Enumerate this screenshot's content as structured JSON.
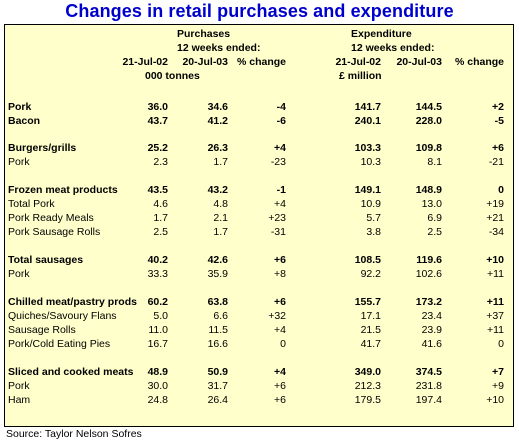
{
  "title": "Changes in retail purchases and expenditure",
  "source": "Source: Taylor Nelson Sofres",
  "header": {
    "purchases": "Purchases",
    "expenditure": "Expenditure",
    "weeks_ended": "12 weeks ended:",
    "date1": "21-Jul-02",
    "date2": "20-Jul-03",
    "pct_change": "% change",
    "unit_purchases": "000 tonnes",
    "unit_expenditure": "£ million"
  },
  "rows": [
    {
      "label": "Pork",
      "bold": true,
      "v": [
        "36.0",
        "34.6",
        "-4",
        "141.7",
        "144.5",
        "+2"
      ]
    },
    {
      "label": "Bacon",
      "bold": true,
      "v": [
        "43.7",
        "41.2",
        "-6",
        "240.1",
        "228.0",
        "-5"
      ]
    },
    {
      "label": "Burgers/grills",
      "bold": true,
      "v": [
        "25.2",
        "26.3",
        "+4",
        "103.3",
        "109.8",
        "+6"
      ]
    },
    {
      "label": "Pork",
      "bold": false,
      "v": [
        "2.3",
        "1.7",
        "-23",
        "10.3",
        "8.1",
        "-21"
      ]
    },
    {
      "label": "Frozen meat products",
      "bold": true,
      "v": [
        "43.5",
        "43.2",
        "-1",
        "149.1",
        "148.9",
        "0"
      ]
    },
    {
      "label": "Total Pork",
      "bold": false,
      "v": [
        "4.6",
        "4.8",
        "+4",
        "10.9",
        "13.0",
        "+19"
      ]
    },
    {
      "label": "Pork Ready Meals",
      "bold": false,
      "v": [
        "1.7",
        "2.1",
        "+23",
        "5.7",
        "6.9",
        "+21"
      ]
    },
    {
      "label": "Pork Sausage Rolls",
      "bold": false,
      "v": [
        "2.5",
        "1.7",
        "-31",
        "3.8",
        "2.5",
        "-34"
      ]
    },
    {
      "label": "Total sausages",
      "bold": true,
      "v": [
        "40.2",
        "42.6",
        "+6",
        "108.5",
        "119.6",
        "+10"
      ]
    },
    {
      "label": "Pork",
      "bold": false,
      "v": [
        "33.3",
        "35.9",
        "+8",
        "92.2",
        "102.6",
        "+11"
      ]
    },
    {
      "label": "Chilled meat/pastry prods",
      "bold": true,
      "v": [
        "60.2",
        "63.8",
        "+6",
        "155.7",
        "173.2",
        "+11"
      ]
    },
    {
      "label": "Quiches/Savoury Flans",
      "bold": false,
      "v": [
        "5.0",
        "6.6",
        "+32",
        "17.1",
        "23.4",
        "+37"
      ]
    },
    {
      "label": "Sausage Rolls",
      "bold": false,
      "v": [
        "11.0",
        "11.5",
        "+4",
        "21.5",
        "23.9",
        "+11"
      ]
    },
    {
      "label": "Pork/Cold Eating Pies",
      "bold": false,
      "v": [
        "16.7",
        "16.6",
        "0",
        "41.7",
        "41.6",
        "0"
      ]
    },
    {
      "label": "Sliced and cooked meats",
      "bold": true,
      "v": [
        "48.9",
        "50.9",
        "+4",
        "349.0",
        "374.5",
        "+7"
      ]
    },
    {
      "label": "Pork",
      "bold": false,
      "v": [
        "30.0",
        "31.7",
        "+6",
        "212.3",
        "231.8",
        "+9"
      ]
    },
    {
      "label": "Ham",
      "bold": false,
      "v": [
        "24.8",
        "26.4",
        "+6",
        "179.5",
        "197.4",
        "+10"
      ]
    }
  ]
}
